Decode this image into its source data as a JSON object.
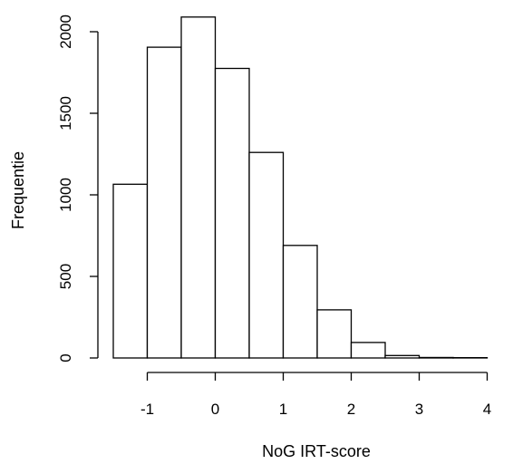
{
  "chart_data": {
    "type": "bar",
    "title": "",
    "xlabel": "NoG IRT-score",
    "ylabel": "Frequentie",
    "bin_edges": [
      -1.5,
      -1.0,
      -0.5,
      0.0,
      0.5,
      1.0,
      1.5,
      2.0,
      2.5,
      3.0,
      3.5,
      4.0
    ],
    "values": [
      1065,
      1905,
      2090,
      1775,
      1260,
      690,
      295,
      95,
      15,
      3,
      2
    ],
    "x_ticks": [
      -1,
      0,
      1,
      2,
      3,
      4
    ],
    "y_ticks": [
      0,
      500,
      1000,
      1500,
      2000
    ],
    "x_tick_labels": [
      "-1",
      "0",
      "1",
      "2",
      "3",
      "4"
    ],
    "y_tick_labels": [
      "0",
      "500",
      "1000",
      "1500",
      "2000"
    ],
    "xlim": [
      -1.5,
      4.0
    ],
    "ylim": [
      0,
      2090
    ],
    "grid": false,
    "legend": "none"
  }
}
